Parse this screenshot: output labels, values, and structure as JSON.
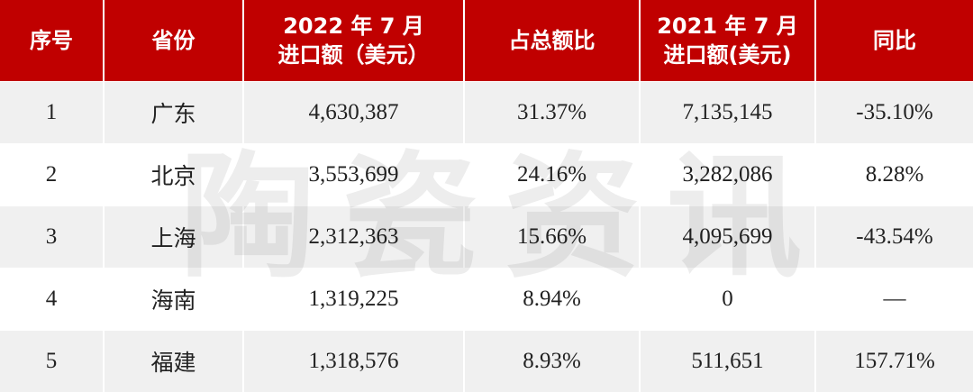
{
  "table": {
    "header": [
      [
        "序号"
      ],
      [
        "省份"
      ],
      [
        "2022 年 7 月",
        "进口额（美元）"
      ],
      [
        "占总额比"
      ],
      [
        "2021 年 7 月",
        "进口额(美元)"
      ],
      [
        "同比"
      ]
    ],
    "rows": [
      [
        "1",
        "广东",
        "4,630,387",
        "31.37%",
        "7,135,145",
        "-35.10%"
      ],
      [
        "2",
        "北京",
        "3,553,699",
        "24.16%",
        "3,282,086",
        "8.28%"
      ],
      [
        "3",
        "上海",
        "2,312,363",
        "15.66%",
        "4,095,699",
        "-43.54%"
      ],
      [
        "4",
        "海南",
        "1,319,225",
        "8.94%",
        "0",
        "—"
      ],
      [
        "5",
        "福建",
        "1,318,576",
        "8.93%",
        "511,651",
        "157.71%"
      ]
    ]
  },
  "watermark": "陶瓷资讯"
}
